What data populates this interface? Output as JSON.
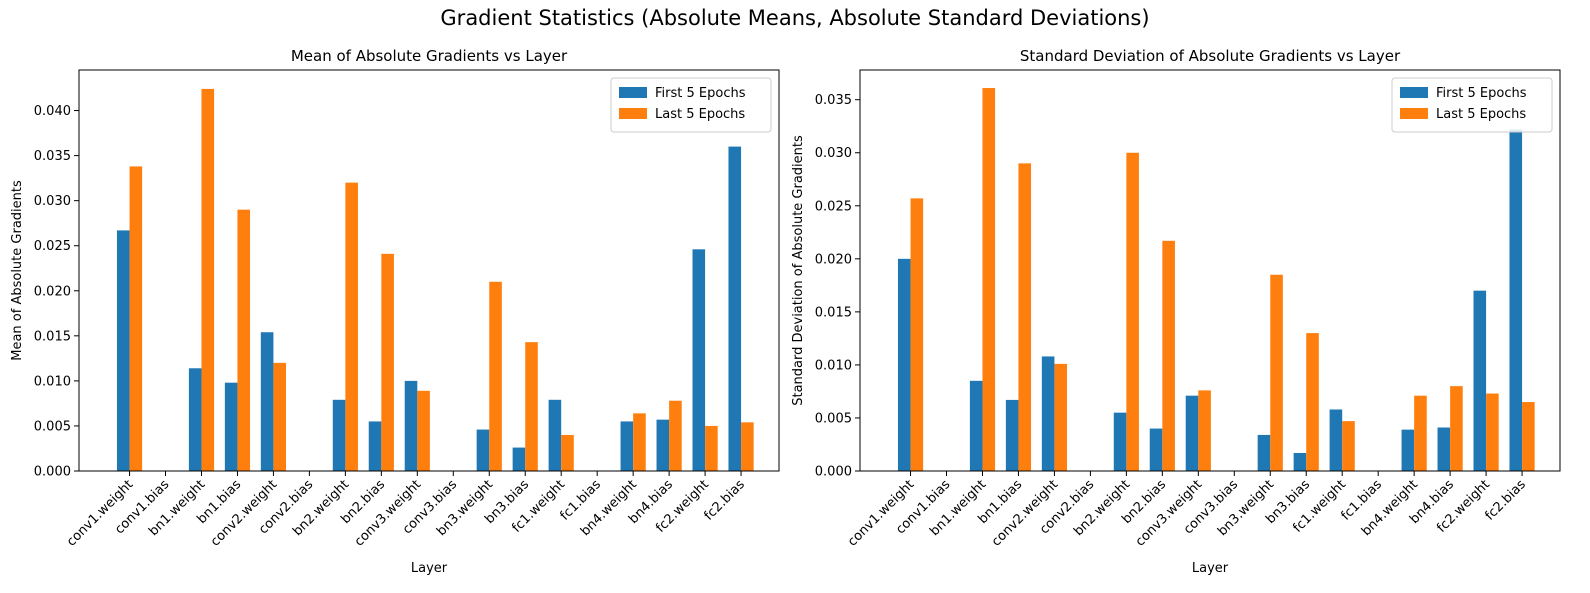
{
  "figure": {
    "title": "Gradient Statistics (Absolute Means, Absolute Standard Deviations)"
  },
  "colors": {
    "first": "#1f77b4",
    "last": "#ff7f0e"
  },
  "chart_data": [
    {
      "type": "bar",
      "title": "Mean of Absolute Gradients vs Layer",
      "xlabel": "Layer",
      "ylabel": "Mean of Absolute Gradients",
      "ylim": [
        0,
        0.0445
      ],
      "yticks": [
        "0.000",
        "0.005",
        "0.010",
        "0.015",
        "0.020",
        "0.025",
        "0.030",
        "0.035",
        "0.040"
      ],
      "legend": "top-right",
      "categories": [
        "conv1.weight",
        "conv1.bias",
        "bn1.weight",
        "bn1.bias",
        "conv2.weight",
        "conv2.bias",
        "bn2.weight",
        "bn2.bias",
        "conv3.weight",
        "conv3.bias",
        "bn3.weight",
        "bn3.bias",
        "fc1.weight",
        "fc1.bias",
        "bn4.weight",
        "bn4.bias",
        "fc2.weight",
        "fc2.bias"
      ],
      "series": [
        {
          "name": "First 5 Epochs",
          "values": [
            0.0267,
            0.0,
            0.0114,
            0.0098,
            0.0154,
            0.0,
            0.0079,
            0.0055,
            0.01,
            0.0,
            0.0046,
            0.0026,
            0.0079,
            0.0,
            0.0055,
            0.0057,
            0.0246,
            0.036
          ]
        },
        {
          "name": "Last 5 Epochs",
          "values": [
            0.0338,
            0.0,
            0.0424,
            0.029,
            0.012,
            0.0,
            0.032,
            0.0241,
            0.0089,
            0.0,
            0.021,
            0.0143,
            0.004,
            0.0,
            0.0064,
            0.0078,
            0.005,
            0.0054
          ]
        }
      ]
    },
    {
      "type": "bar",
      "title": "Standard Deviation of Absolute Gradients vs Layer",
      "xlabel": "Layer",
      "ylabel": "Standard Deviation of Absolute Gradients",
      "ylim": [
        0,
        0.0378
      ],
      "yticks": [
        "0.000",
        "0.005",
        "0.010",
        "0.015",
        "0.020",
        "0.025",
        "0.030",
        "0.035"
      ],
      "legend": "top-right",
      "categories": [
        "conv1.weight",
        "conv1.bias",
        "bn1.weight",
        "bn1.bias",
        "conv2.weight",
        "conv2.bias",
        "bn2.weight",
        "bn2.bias",
        "conv3.weight",
        "conv3.bias",
        "bn3.weight",
        "bn3.bias",
        "fc1.weight",
        "fc1.bias",
        "bn4.weight",
        "bn4.bias",
        "fc2.weight",
        "fc2.bias"
      ],
      "series": [
        {
          "name": "First 5 Epochs",
          "values": [
            0.02,
            0.0,
            0.0085,
            0.0067,
            0.0108,
            0.0,
            0.0055,
            0.004,
            0.0071,
            0.0,
            0.0034,
            0.0017,
            0.0058,
            0.0,
            0.0039,
            0.0041,
            0.017,
            0.0322
          ]
        },
        {
          "name": "Last 5 Epochs",
          "values": [
            0.0257,
            0.0,
            0.0361,
            0.029,
            0.0101,
            0.0,
            0.03,
            0.0217,
            0.0076,
            0.0,
            0.0185,
            0.013,
            0.0047,
            0.0,
            0.0071,
            0.008,
            0.0073,
            0.0065
          ]
        }
      ]
    }
  ]
}
